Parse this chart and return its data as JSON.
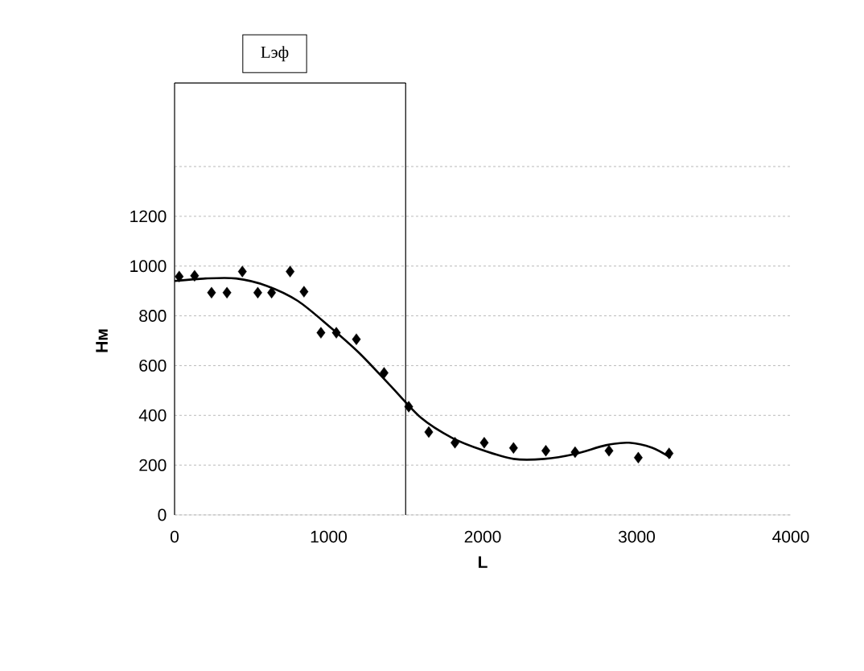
{
  "chart_data": {
    "type": "scatter",
    "xlabel": "L",
    "ylabel": "Нм",
    "xlim": [
      0,
      4000
    ],
    "xticks": [
      0,
      1000,
      2000,
      3000,
      4000
    ],
    "ylim": [
      0,
      1400
    ],
    "yticks": [
      0,
      200,
      400,
      600,
      800,
      1000,
      1200,
      {
        "value": 1400,
        "label": null
      }
    ],
    "grid": "y",
    "marker": "diamond",
    "series": [
      {
        "color": "#000000",
        "x": [
          30,
          130,
          240,
          340,
          440,
          540,
          630,
          750,
          840,
          950,
          1050,
          1180,
          1360,
          1520,
          1650,
          1820,
          2010,
          2200,
          2410,
          2600,
          2820,
          3010,
          3210
        ],
        "values": [
          958,
          961,
          893,
          893,
          978,
          893,
          893,
          978,
          897,
          732,
          732,
          706,
          571,
          435,
          333,
          290,
          290,
          269,
          258,
          252,
          258,
          230,
          247
        ]
      },
      {
        "type": "line",
        "color": "#000000",
        "marker": "none",
        "line_style": "solid",
        "x": [
          0,
          200,
          400,
          600,
          800,
          1000,
          1200,
          1400,
          1600,
          1800,
          2000,
          2200,
          2400,
          2600,
          2800,
          2950,
          3100,
          3220
        ],
        "values": [
          940,
          950,
          950,
          920,
          860,
          760,
          650,
          520,
          390,
          310,
          260,
          225,
          225,
          245,
          280,
          290,
          270,
          230
        ]
      }
    ],
    "ref_lines": [
      {
        "axis": "x",
        "value": 0
      },
      {
        "axis": "x",
        "value": 1500
      }
    ],
    "annotations": [
      "Lэф"
    ]
  }
}
